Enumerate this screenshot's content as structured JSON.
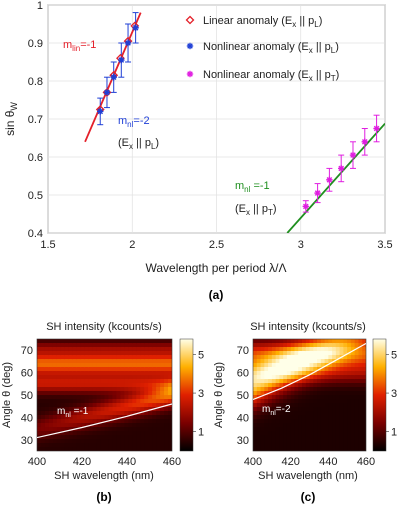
{
  "colors": {
    "linear": "#e4202a",
    "nl_pl": "#1f3fd6",
    "nl_pt": "#e01ee0",
    "fit_green": "#1f8f1f",
    "heat_dark": "#1a0000",
    "heat_bright": "#ffffe0"
  },
  "chart_data": [
    {
      "type": "scatter",
      "panel_label": "(a)",
      "xlabel": "Wavelength per period  λ/Λ",
      "ylabel": "sin θ",
      "ylabel_sub": "W",
      "xlim": [
        1.5,
        3.5
      ],
      "ylim": [
        0.4,
        1.0
      ],
      "xticks": [
        "1.5",
        "2",
        "2.5",
        "3",
        "3.5"
      ],
      "yticks": [
        "0.4",
        "0.5",
        "0.6",
        "0.7",
        "0.8",
        "0.9",
        "1"
      ],
      "grid": true,
      "legend_position": "top-right",
      "legend": [
        {
          "marker": "diamond",
          "text": "Linear anomaly (E",
          "sub1": "x",
          "mid": " || p",
          "sub2": "L",
          "end": ")"
        },
        {
          "marker": "asterisk",
          "text": "Nonlinear anomaly (E",
          "sub1": "x",
          "mid": " || p",
          "sub2": "L",
          "end": ")"
        },
        {
          "marker": "asterisk",
          "text": "Nonlinear anomaly (E",
          "sub1": "x",
          "mid": " || p",
          "sub2": "T",
          "end": ")"
        }
      ],
      "series": [
        {
          "name": "Linear anomaly (Ex || pL)",
          "marker": "diamond",
          "x": [
            1.81,
            1.85,
            1.89,
            1.93,
            1.975,
            2.015
          ],
          "y": [
            0.725,
            0.77,
            0.815,
            0.86,
            0.905,
            0.945
          ]
        },
        {
          "name": "Nonlinear anomaly (Ex || pL)",
          "marker": "asterisk",
          "x": [
            1.81,
            1.85,
            1.89,
            1.935,
            1.975,
            2.02
          ],
          "y": [
            0.72,
            0.77,
            0.81,
            0.855,
            0.9,
            0.94
          ],
          "err": [
            0.035,
            0.04,
            0.04,
            0.045,
            0.05,
            0.04
          ]
        },
        {
          "name": "Nonlinear anomaly (Ex || pT)",
          "marker": "asterisk",
          "x": [
            3.03,
            3.1,
            3.17,
            3.24,
            3.31,
            3.38,
            3.45
          ],
          "y": [
            0.47,
            0.505,
            0.54,
            0.57,
            0.605,
            0.64,
            0.675
          ],
          "err": [
            0.015,
            0.025,
            0.03,
            0.035,
            0.035,
            0.035,
            0.035
          ]
        }
      ],
      "fits": [
        {
          "name": "m_lin=-1 fit",
          "x": [
            1.72,
            2.05
          ],
          "y": [
            0.64,
            0.98
          ]
        },
        {
          "name": "m_nl=-1 fit",
          "x": [
            2.92,
            3.5
          ],
          "y": [
            0.4,
            0.688
          ]
        }
      ],
      "annotations": {
        "mlin": {
          "m": "m",
          "sub": "lin",
          "val": "=-1"
        },
        "mnl_pl": {
          "m": "m",
          "sub": "nl",
          "val": "=-2"
        },
        "mnl_pl_pol": {
          "pre": "(E",
          "sub1": "x",
          "mid": " || p",
          "sub2": "L",
          "end": ")"
        },
        "mnl_pt": {
          "m": "m",
          "sub": "nl",
          "val": " =-1"
        },
        "mnl_pt_pol": {
          "pre": "(E",
          "sub1": "x",
          "mid": " || p",
          "sub2": "T",
          "end": ")"
        }
      }
    },
    {
      "type": "heatmap",
      "panel_label": "(b)",
      "title": "SH intensity (kcounts/s)",
      "xlabel": "SH wavelength (nm)",
      "ylabel": "Angle θ (deg)",
      "xlim": [
        400,
        460
      ],
      "ylim": [
        25,
        75
      ],
      "xticks": [
        "400",
        "420",
        "440",
        "460"
      ],
      "yticks": [
        "30",
        "40",
        "50",
        "60",
        "70"
      ],
      "colorbar_ticks": [
        "1",
        "3",
        "5"
      ],
      "colorbar_range": [
        0,
        5.8
      ],
      "curve_label": {
        "m": "m",
        "sub": "nl",
        "val": " =-1"
      },
      "curve": {
        "x": [
          400,
          420,
          440,
          460
        ],
        "y": [
          31,
          35.5,
          40.5,
          46
        ]
      }
    },
    {
      "type": "heatmap",
      "panel_label": "(c)",
      "title": "SH intensity (kcounts/s)",
      "xlabel": "SH wavelength (nm)",
      "ylabel": "Angle θ (deg)",
      "xlim": [
        400,
        460
      ],
      "ylim": [
        25,
        75
      ],
      "xticks": [
        "400",
        "420",
        "440",
        "460"
      ],
      "yticks": [
        "30",
        "40",
        "50",
        "60",
        "70"
      ],
      "colorbar_ticks": [
        "1",
        "3",
        "5"
      ],
      "colorbar_range": [
        0,
        5.8
      ],
      "curve_label": {
        "m": "m",
        "sub": "nl",
        "val": "=-2"
      },
      "curve": {
        "x": [
          400,
          415,
          430,
          445,
          460
        ],
        "y": [
          48,
          53,
          59,
          66,
          73
        ]
      }
    }
  ]
}
